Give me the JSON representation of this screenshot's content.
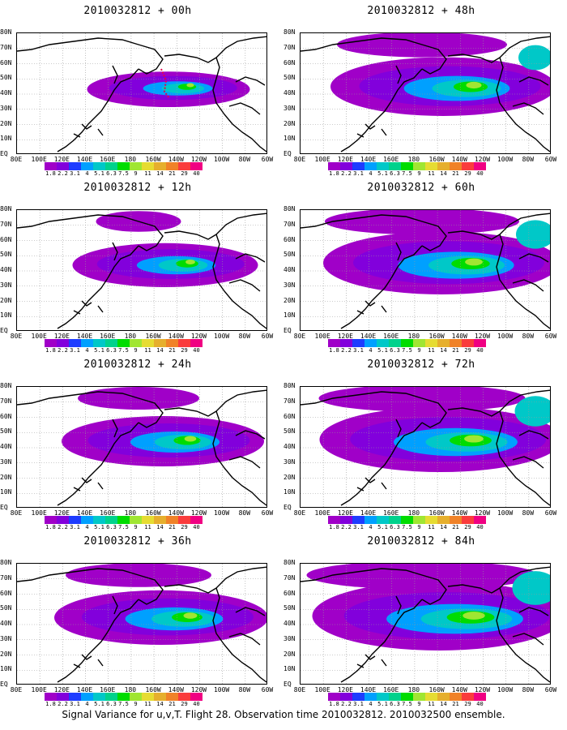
{
  "panels": [
    {
      "title": "2010032812 + 00h",
      "spread": 0.15,
      "intensity": 0.35
    },
    {
      "title": "2010032812 + 12h",
      "spread": 0.35,
      "intensity": 0.45
    },
    {
      "title": "2010032812 + 24h",
      "spread": 0.5,
      "intensity": 0.55
    },
    {
      "title": "2010032812 + 36h",
      "spread": 0.6,
      "intensity": 0.62
    },
    {
      "title": "2010032812 + 48h",
      "spread": 0.7,
      "intensity": 0.66
    },
    {
      "title": "2010032812 + 60h",
      "spread": 0.8,
      "intensity": 0.72
    },
    {
      "title": "2010032812 + 72h",
      "spread": 0.85,
      "intensity": 0.78
    },
    {
      "title": "2010032812 + 84h",
      "spread": 0.95,
      "intensity": 0.85
    }
  ],
  "lat_labels": [
    "80N",
    "70N",
    "60N",
    "50N",
    "40N",
    "30N",
    "20N",
    "10N",
    "EQ"
  ],
  "lon_labels": [
    "80E",
    "100E",
    "120E",
    "140E",
    "160E",
    "180",
    "160W",
    "140W",
    "120W",
    "100W",
    "80W",
    "60W"
  ],
  "colorbar": {
    "labels": [
      "1.8",
      "2.2",
      "3.1",
      "4",
      "5.1",
      "6.3",
      "7.5",
      "9",
      "11",
      "14",
      "21",
      "29",
      "40"
    ],
    "colors": [
      "#a000c8",
      "#8200dc",
      "#1e3cff",
      "#00a0ff",
      "#00c8c8",
      "#00d28c",
      "#00dc00",
      "#a0e632",
      "#e6dc32",
      "#e6af2d",
      "#f08228",
      "#fa3c3c",
      "#f00082"
    ]
  },
  "caption": "Signal Variance for u,v,T. Flight 28. Observation time 2010032812. 2010032500 ensemble."
}
